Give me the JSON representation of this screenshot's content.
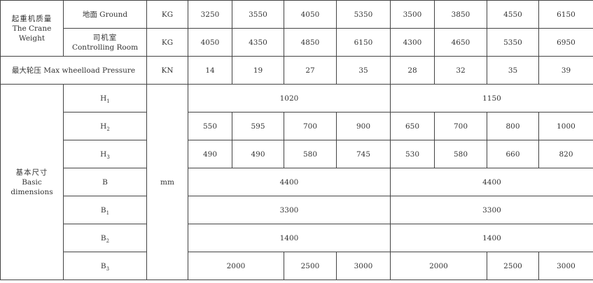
{
  "weight": {
    "label_cn": "起重机质量",
    "label_en_1": "The Crane",
    "label_en_2": "Weight",
    "ground": {
      "label": "地面 Ground",
      "unit": "KG",
      "values": [
        "3250",
        "3550",
        "4050",
        "5350",
        "3500",
        "3850",
        "4550",
        "6150"
      ]
    },
    "room": {
      "label_cn": "司机室",
      "label_en": "Controlling Room",
      "unit": "KG",
      "values": [
        "4050",
        "4350",
        "4850",
        "6150",
        "4300",
        "4650",
        "5350",
        "6950"
      ]
    }
  },
  "pressure": {
    "label": "最大轮压 Max wheelload Pressure",
    "unit": "KN",
    "values": [
      "14",
      "19",
      "27",
      "35",
      "28",
      "32",
      "35",
      "39"
    ]
  },
  "dims": {
    "label_cn": "基本尺寸",
    "label_en": "Basic dimensions",
    "unit": "mm",
    "rows": [
      {
        "label": "H",
        "sub": "1",
        "cells": [
          {
            "v": "1020",
            "span": 4
          },
          {
            "v": "1150",
            "span": 4
          }
        ]
      },
      {
        "label": "H",
        "sub": "2",
        "cells": [
          {
            "v": "550"
          },
          {
            "v": "595"
          },
          {
            "v": "700"
          },
          {
            "v": "900"
          },
          {
            "v": "650"
          },
          {
            "v": "700"
          },
          {
            "v": "800"
          },
          {
            "v": "1000"
          }
        ]
      },
      {
        "label": "H",
        "sub": "3",
        "cells": [
          {
            "v": "490"
          },
          {
            "v": "490"
          },
          {
            "v": "580"
          },
          {
            "v": "745"
          },
          {
            "v": "530"
          },
          {
            "v": "580"
          },
          {
            "v": "660"
          },
          {
            "v": "820"
          }
        ]
      },
      {
        "label": "B",
        "sub": "",
        "cells": [
          {
            "v": "4400",
            "span": 4
          },
          {
            "v": "4400",
            "span": 4
          }
        ]
      },
      {
        "label": "B",
        "sub": "1",
        "cells": [
          {
            "v": "3300",
            "span": 4
          },
          {
            "v": "3300",
            "span": 4
          }
        ]
      },
      {
        "label": "B",
        "sub": "2",
        "cells": [
          {
            "v": "1400",
            "span": 4
          },
          {
            "v": "1400",
            "span": 4
          }
        ]
      },
      {
        "label": "B",
        "sub": "3",
        "cells": [
          {
            "v": "2000",
            "span": 2
          },
          {
            "v": "2500"
          },
          {
            "v": "3000"
          },
          {
            "v": "2000",
            "span": 2
          },
          {
            "v": "2500"
          },
          {
            "v": "3000"
          }
        ]
      }
    ]
  }
}
